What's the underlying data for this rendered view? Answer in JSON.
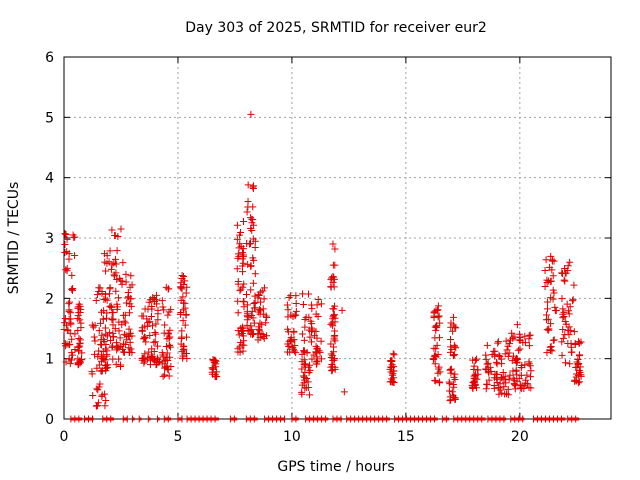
{
  "chart_data": {
    "type": "scatter",
    "title": "Day 303 of 2025, SRMTID for receiver eur2",
    "xlabel": "GPS time / hours",
    "ylabel": "SRMTID / TECUs",
    "xlim": [
      0,
      24
    ],
    "ylim": [
      0,
      6
    ],
    "xticks": [
      0,
      5,
      10,
      15,
      20
    ],
    "yticks": [
      0,
      1,
      2,
      3,
      4,
      5,
      6
    ],
    "grid": true,
    "marker": "+",
    "color": "#e00000",
    "clusters": [
      {
        "x": [
          0.0,
          0.5
        ],
        "y": [
          0.9,
          3.1
        ]
      },
      {
        "x": [
          0.6,
          0.8
        ],
        "y": [
          0.9,
          2.0
        ]
      },
      {
        "x": [
          1.2,
          1.9
        ],
        "y": [
          0.2,
          2.2
        ]
      },
      {
        "x": [
          1.6,
          2.1
        ],
        "y": [
          0.8,
          2.8
        ]
      },
      {
        "x": [
          2.1,
          2.6
        ],
        "y": [
          0.8,
          3.2
        ]
      },
      {
        "x": [
          2.6,
          3.0
        ],
        "y": [
          1.1,
          2.4
        ]
      },
      {
        "x": [
          3.4,
          3.8
        ],
        "y": [
          0.9,
          2.0
        ]
      },
      {
        "x": [
          3.8,
          4.2
        ],
        "y": [
          0.9,
          2.1
        ]
      },
      {
        "x": [
          4.3,
          4.7
        ],
        "y": [
          0.7,
          2.3
        ]
      },
      {
        "x": [
          5.1,
          5.4
        ],
        "y": [
          1.0,
          2.4
        ]
      },
      {
        "x": [
          6.5,
          6.7
        ],
        "y": [
          0.7,
          1.0
        ]
      },
      {
        "x": [
          7.6,
          7.9
        ],
        "y": [
          1.1,
          3.4
        ]
      },
      {
        "x": [
          8.0,
          8.4
        ],
        "y": [
          1.4,
          4.1
        ]
      },
      {
        "x": [
          8.5,
          8.9
        ],
        "y": [
          1.3,
          2.2
        ]
      },
      {
        "x": [
          9.8,
          10.2
        ],
        "y": [
          1.1,
          2.1
        ]
      },
      {
        "x": [
          10.4,
          10.8
        ],
        "y": [
          0.4,
          2.1
        ]
      },
      {
        "x": [
          10.8,
          11.3
        ],
        "y": [
          0.9,
          2.0
        ]
      },
      {
        "x": [
          11.7,
          11.9
        ],
        "y": [
          0.8,
          2.9
        ]
      },
      {
        "x": [
          14.3,
          14.5
        ],
        "y": [
          0.6,
          1.1
        ]
      },
      {
        "x": [
          16.2,
          16.5
        ],
        "y": [
          0.6,
          1.9
        ]
      },
      {
        "x": [
          16.9,
          17.2
        ],
        "y": [
          0.3,
          1.7
        ]
      },
      {
        "x": [
          17.9,
          18.2
        ],
        "y": [
          0.5,
          1.0
        ]
      },
      {
        "x": [
          18.5,
          19.0
        ],
        "y": [
          0.5,
          1.3
        ]
      },
      {
        "x": [
          19.0,
          19.5
        ],
        "y": [
          0.4,
          1.4
        ]
      },
      {
        "x": [
          19.5,
          20.0
        ],
        "y": [
          0.5,
          1.6
        ]
      },
      {
        "x": [
          20.0,
          20.5
        ],
        "y": [
          0.5,
          1.4
        ]
      },
      {
        "x": [
          21.1,
          21.6
        ],
        "y": [
          1.1,
          2.7
        ]
      },
      {
        "x": [
          21.8,
          22.4
        ],
        "y": [
          0.9,
          2.6
        ]
      },
      {
        "x": [
          22.4,
          22.7
        ],
        "y": [
          0.6,
          1.3
        ]
      }
    ],
    "special_points": [
      {
        "x": 8.2,
        "y": 5.05
      },
      {
        "x": 12.3,
        "y": 0.45
      },
      {
        "x": 12.2,
        "y": 1.8
      },
      {
        "x": 11.8,
        "y": 2.9
      },
      {
        "x": 0.4,
        "y": 3.05
      },
      {
        "x": 2.5,
        "y": 3.15
      }
    ],
    "zero_line": {
      "y": 0,
      "ranges": [
        [
          0.3,
          0.8
        ],
        [
          0.9,
          1.3
        ],
        [
          1.7,
          2.2
        ],
        [
          2.6,
          2.8
        ],
        [
          3.0,
          3.1
        ],
        [
          3.3,
          3.4
        ],
        [
          3.7,
          3.8
        ],
        [
          4.1,
          4.2
        ],
        [
          4.4,
          4.7
        ],
        [
          5.0,
          5.2
        ],
        [
          5.4,
          6.8
        ],
        [
          7.3,
          7.6
        ],
        [
          8.0,
          8.5
        ],
        [
          8.8,
          9.7
        ],
        [
          10.0,
          10.3
        ],
        [
          10.6,
          11.6
        ],
        [
          11.8,
          12.2
        ],
        [
          12.4,
          14.3
        ],
        [
          14.5,
          16.4
        ],
        [
          16.6,
          16.9
        ],
        [
          17.1,
          18.5
        ],
        [
          18.6,
          19.4
        ],
        [
          19.6,
          20.2
        ],
        [
          20.6,
          22.0
        ],
        [
          22.1,
          22.6
        ]
      ]
    }
  }
}
